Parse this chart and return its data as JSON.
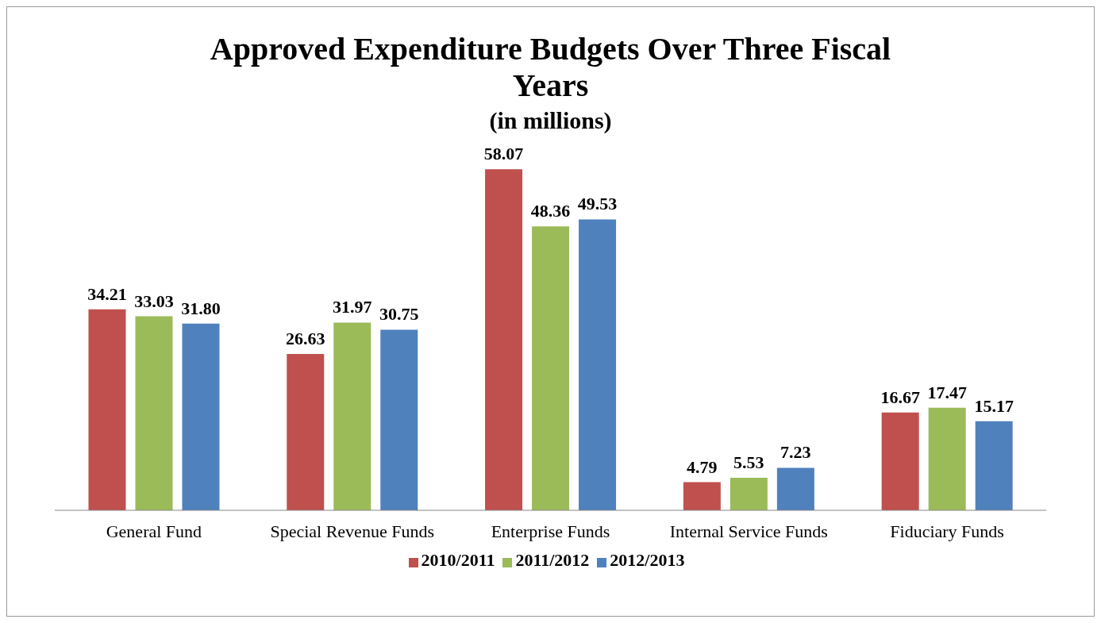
{
  "chart_data": {
    "type": "bar",
    "title": "Approved Expenditure Budgets Over Three Fiscal Years",
    "subtitle": "(in millions)",
    "categories": [
      "General Fund",
      "Special Revenue Funds",
      "Enterprise Funds",
      "Internal Service Funds",
      "Fiduciary Funds"
    ],
    "series": [
      {
        "name": "2010/2011",
        "color": "#c0504d",
        "values": [
          34.21,
          26.63,
          58.07,
          4.79,
          16.67
        ],
        "value_labels": [
          "34.21",
          "26.63",
          "58.07",
          "4.79",
          "16.67"
        ]
      },
      {
        "name": "2011/2012",
        "color": "#9bbb59",
        "values": [
          33.03,
          31.97,
          48.36,
          5.53,
          17.47
        ],
        "value_labels": [
          "33.03",
          "31.97",
          "48.36",
          "5.53",
          "17.47"
        ]
      },
      {
        "name": "2012/2013",
        "color": "#4f81bd",
        "values": [
          31.8,
          30.75,
          49.53,
          7.23,
          15.17
        ],
        "value_labels": [
          "31.80",
          "30.75",
          "49.53",
          "7.23",
          "15.17"
        ]
      }
    ],
    "legend": "bottom"
  }
}
